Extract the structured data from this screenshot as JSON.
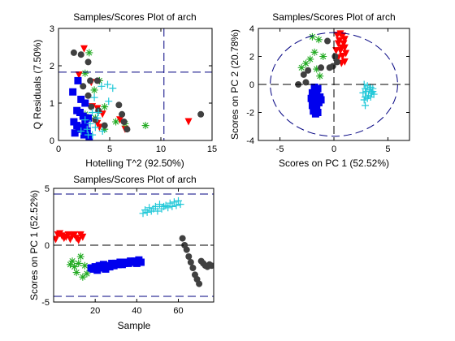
{
  "figure": {
    "background": "#ffffff",
    "panel_ids": [
      "scores-plot-q-vs-t2",
      "scores-plot-pc2-vs-pc1",
      "scores-plot-pc1-vs-sample"
    ]
  },
  "colors": {
    "red": "#ff0000",
    "green": "#22aa22",
    "dark": "#404040",
    "blue": "#0000ee",
    "cyan": "#20c8d8",
    "limit_line": "#000080",
    "zero_line": "#000000"
  },
  "chart_data": [
    {
      "id": "scores-plot-q-vs-t2",
      "type": "scatter",
      "title": "Samples/Scores Plot of arch",
      "xlabel": "Hotelling T^2 (92.50%)",
      "ylabel": "Q Residuals (7.50%)",
      "xlim": [
        0,
        15
      ],
      "ylim": [
        0,
        3
      ],
      "xticks": [
        0,
        5,
        10,
        15
      ],
      "yticks": [
        0,
        1,
        2,
        3
      ],
      "xtick_labels": [
        "0",
        "5",
        "10",
        "15"
      ],
      "ytick_labels": [
        "0",
        "1",
        "2",
        "3"
      ],
      "limit_lines": {
        "vertical_x": 10.3,
        "horizontal_y": 1.83
      },
      "grid": false,
      "series": [
        {
          "marker": "triangle-down",
          "color": "#ff0000",
          "points": [
            [
              2.5,
              2.45
            ],
            [
              2.0,
              1.75
            ],
            [
              3.2,
              1.55
            ],
            [
              3.3,
              0.9
            ],
            [
              3.8,
              0.85
            ],
            [
              4.3,
              0.7
            ],
            [
              6.0,
              0.55
            ],
            [
              3.8,
              0.45
            ],
            [
              6.5,
              0.3
            ],
            [
              12.7,
              0.5
            ],
            [
              4.0,
              0.35
            ]
          ]
        },
        {
          "marker": "star",
          "color": "#22aa22",
          "points": [
            [
              3.0,
              2.35
            ],
            [
              4.0,
              1.6
            ],
            [
              2.6,
              1.8
            ],
            [
              3.5,
              1.35
            ],
            [
              4.5,
              0.9
            ],
            [
              3.6,
              0.6
            ],
            [
              5.6,
              0.5
            ],
            [
              6.5,
              0.45
            ],
            [
              8.5,
              0.4
            ],
            [
              2.6,
              0.7
            ],
            [
              4.5,
              0.3
            ]
          ]
        },
        {
          "marker": "circle",
          "color": "#404040",
          "points": [
            [
              1.5,
              2.35
            ],
            [
              2.2,
              2.3
            ],
            [
              2.9,
              2.1
            ],
            [
              3.1,
              1.6
            ],
            [
              3.8,
              1.6
            ],
            [
              2.4,
              1.45
            ],
            [
              2.9,
              1.2
            ],
            [
              3.2,
              0.9
            ],
            [
              3.9,
              0.8
            ],
            [
              5.9,
              0.95
            ],
            [
              6.2,
              0.7
            ],
            [
              6.4,
              0.5
            ],
            [
              4.5,
              0.4
            ],
            [
              3.6,
              0.55
            ],
            [
              13.9,
              0.7
            ],
            [
              6.7,
              0.3
            ]
          ]
        },
        {
          "marker": "square",
          "color": "#0000ee",
          "points": [
            [
              1.9,
              1.6
            ],
            [
              1.4,
              1.3
            ],
            [
              2.2,
              1.1
            ],
            [
              2.6,
              1.0
            ],
            [
              1.8,
              0.8
            ],
            [
              2.1,
              0.75
            ],
            [
              2.4,
              0.65
            ],
            [
              2.9,
              0.6
            ],
            [
              1.5,
              0.5
            ],
            [
              2.0,
              0.35
            ],
            [
              2.3,
              0.3
            ],
            [
              2.8,
              0.25
            ],
            [
              1.6,
              0.2
            ],
            [
              2.5,
              0.15
            ],
            [
              3.0,
              0.1
            ],
            [
              1.8,
              0.4
            ],
            [
              2.6,
              0.45
            ]
          ]
        },
        {
          "marker": "plus",
          "color": "#20c8d8",
          "points": [
            [
              4.2,
              1.45
            ],
            [
              4.8,
              1.5
            ],
            [
              5.3,
              1.4
            ],
            [
              3.5,
              1.15
            ],
            [
              4.9,
              1.05
            ],
            [
              3.3,
              0.75
            ],
            [
              3.9,
              0.75
            ],
            [
              2.6,
              0.55
            ],
            [
              3.1,
              0.45
            ],
            [
              3.6,
              0.35
            ],
            [
              2.8,
              0.3
            ],
            [
              4.3,
              0.25
            ],
            [
              3.3,
              0.15
            ],
            [
              2.2,
              0.25
            ],
            [
              2.9,
              0.15
            ],
            [
              3.8,
              0.6
            ]
          ]
        }
      ]
    },
    {
      "id": "scores-plot-pc2-vs-pc1",
      "type": "scatter",
      "title": "Samples/Scores Plot of arch",
      "xlabel": "Scores on PC 1 (52.52%)",
      "ylabel": "Scores on PC 2 (20.78%)",
      "xlim": [
        -7,
        7
      ],
      "ylim": [
        -4,
        4
      ],
      "xticks": [
        -5,
        0,
        5
      ],
      "yticks": [
        -4,
        -2,
        0,
        2,
        4
      ],
      "xtick_labels": [
        "-5",
        "0",
        "5"
      ],
      "ytick_labels": [
        "-4",
        "-2",
        "0",
        "2",
        "4"
      ],
      "confidence_ellipse": {
        "center": [
          0,
          0
        ],
        "radius_x": 5.9,
        "radius_y": 3.7
      },
      "zero_lines": true,
      "grid": false,
      "series": [
        {
          "marker": "triangle-down",
          "color": "#ff0000",
          "points": [
            [
              0.3,
              3.5
            ],
            [
              0.6,
              3.6
            ],
            [
              0.8,
              3.45
            ],
            [
              1.0,
              3.2
            ],
            [
              0.5,
              3.1
            ],
            [
              0.4,
              2.9
            ],
            [
              0.9,
              2.9
            ],
            [
              0.7,
              2.6
            ],
            [
              1.0,
              2.6
            ],
            [
              0.2,
              2.4
            ],
            [
              0.6,
              2.4
            ],
            [
              1.1,
              2.2
            ],
            [
              0.8,
              2.0
            ],
            [
              0.4,
              1.9
            ],
            [
              1.0,
              1.6
            ],
            [
              0.7,
              1.5
            ]
          ]
        },
        {
          "marker": "star",
          "color": "#22aa22",
          "points": [
            [
              -2.0,
              3.4
            ],
            [
              -1.4,
              3.2
            ],
            [
              -1.8,
              2.3
            ],
            [
              -1.0,
              2.0
            ],
            [
              -2.2,
              1.8
            ],
            [
              -2.6,
              1.5
            ],
            [
              -3.0,
              1.2
            ],
            [
              -1.6,
              1.1
            ],
            [
              -1.3,
              0.6
            ]
          ]
        },
        {
          "marker": "circle",
          "color": "#404040",
          "points": [
            [
              -0.6,
              3.1
            ],
            [
              0.1,
              2.0
            ],
            [
              -0.1,
              1.3
            ],
            [
              -0.4,
              1.2
            ],
            [
              -1.2,
              1.2
            ],
            [
              -2.4,
              1.0
            ],
            [
              -2.8,
              0.7
            ],
            [
              -3.3,
              0.0
            ],
            [
              -2.6,
              0.15
            ],
            [
              0.3,
              1.6
            ]
          ]
        },
        {
          "marker": "square",
          "color": "#0000ee",
          "points": [
            [
              -1.8,
              -0.2
            ],
            [
              -1.5,
              -0.3
            ],
            [
              -2.0,
              -0.6
            ],
            [
              -1.6,
              -0.7
            ],
            [
              -1.3,
              -0.9
            ],
            [
              -2.1,
              -1.0
            ],
            [
              -1.7,
              -1.2
            ],
            [
              -1.4,
              -1.3
            ],
            [
              -2.0,
              -1.5
            ],
            [
              -1.6,
              -1.6
            ],
            [
              -1.9,
              -1.9
            ],
            [
              -1.5,
              -2.0
            ],
            [
              -1.7,
              -2.1
            ],
            [
              -1.2,
              -1.1
            ],
            [
              -1.8,
              -1.4
            ]
          ]
        },
        {
          "marker": "plus",
          "color": "#20c8d8",
          "points": [
            [
              2.8,
              0.0
            ],
            [
              3.1,
              -0.1
            ],
            [
              3.4,
              -0.2
            ],
            [
              2.9,
              -0.3
            ],
            [
              3.3,
              -0.4
            ],
            [
              3.6,
              -0.5
            ],
            [
              3.0,
              -0.5
            ],
            [
              3.5,
              -0.6
            ],
            [
              2.7,
              -0.6
            ],
            [
              3.2,
              -0.8
            ],
            [
              2.9,
              -0.9
            ],
            [
              3.4,
              -0.9
            ],
            [
              3.1,
              -1.0
            ],
            [
              2.8,
              -1.1
            ],
            [
              2.9,
              -1.5
            ],
            [
              3.6,
              -0.3
            ],
            [
              3.7,
              -0.7
            ]
          ]
        }
      ]
    },
    {
      "id": "scores-plot-pc1-vs-sample",
      "type": "scatter",
      "title": "Samples/Scores Plot of arch",
      "xlabel": "Sample",
      "ylabel": "Scores on PC 1 (52.52%)",
      "xlim": [
        0,
        77
      ],
      "ylim": [
        -5,
        5
      ],
      "xticks": [
        20,
        40,
        60
      ],
      "yticks": [
        -5,
        0,
        5
      ],
      "xtick_labels": [
        "20",
        "40",
        "60"
      ],
      "ytick_labels": [
        "-5",
        "0",
        "5"
      ],
      "limit_lines": {
        "upper_y": 4.5,
        "lower_y": -4.5
      },
      "zero_line": true,
      "grid": false,
      "series": [
        {
          "marker": "triangle-down",
          "color": "#ff0000",
          "points": [
            [
              1,
              0.5
            ],
            [
              2,
              0.9
            ],
            [
              3,
              1.0
            ],
            [
              4,
              0.8
            ],
            [
              5,
              0.6
            ],
            [
              6,
              0.7
            ],
            [
              7,
              0.9
            ],
            [
              8,
              0.5
            ],
            [
              9,
              0.8
            ],
            [
              10,
              0.9
            ],
            [
              11,
              0.6
            ],
            [
              12,
              0.4
            ],
            [
              13,
              0.9
            ],
            [
              14,
              0.7
            ]
          ]
        },
        {
          "marker": "star",
          "color": "#22aa22",
          "points": [
            [
              8,
              -1.7
            ],
            [
              9,
              -1.4
            ],
            [
              10,
              -1.9
            ],
            [
              11,
              -2.4
            ],
            [
              12,
              -1.6
            ],
            [
              13,
              -1.0
            ],
            [
              14,
              -2.8
            ],
            [
              15,
              -1.8
            ],
            [
              16,
              -2.5
            ]
          ]
        },
        {
          "marker": "square",
          "color": "#0000ee",
          "points": [
            [
              18,
              -2.0
            ],
            [
              19,
              -2.1
            ],
            [
              20,
              -1.9
            ],
            [
              21,
              -2.2
            ],
            [
              22,
              -1.8
            ],
            [
              23,
              -2.0
            ],
            [
              24,
              -1.7
            ],
            [
              25,
              -2.1
            ],
            [
              26,
              -1.8
            ],
            [
              27,
              -1.9
            ],
            [
              28,
              -1.6
            ],
            [
              29,
              -1.8
            ],
            [
              30,
              -1.6
            ],
            [
              31,
              -1.7
            ],
            [
              32,
              -1.5
            ],
            [
              33,
              -1.7
            ],
            [
              34,
              -1.6
            ],
            [
              35,
              -1.5
            ],
            [
              36,
              -1.6
            ],
            [
              37,
              -1.4
            ],
            [
              38,
              -1.5
            ],
            [
              39,
              -1.4
            ],
            [
              40,
              -1.6
            ],
            [
              41,
              -1.3
            ],
            [
              42,
              -1.5
            ]
          ]
        },
        {
          "marker": "plus",
          "color": "#20c8d8",
          "points": [
            [
              43,
              2.8
            ],
            [
              44,
              3.1
            ],
            [
              45,
              2.9
            ],
            [
              46,
              3.3
            ],
            [
              47,
              3.0
            ],
            [
              48,
              3.2
            ],
            [
              49,
              3.4
            ],
            [
              50,
              3.0
            ],
            [
              51,
              3.6
            ],
            [
              52,
              3.2
            ],
            [
              53,
              3.4
            ],
            [
              54,
              3.5
            ],
            [
              55,
              3.3
            ],
            [
              56,
              3.7
            ],
            [
              57,
              3.4
            ],
            [
              58,
              3.8
            ],
            [
              59,
              3.5
            ],
            [
              60,
              3.9
            ],
            [
              61,
              3.6
            ]
          ]
        },
        {
          "marker": "circle",
          "color": "#404040",
          "points": [
            [
              62,
              0.6
            ],
            [
              63,
              0.0
            ],
            [
              64,
              -0.4
            ],
            [
              65,
              -1.0
            ],
            [
              66,
              -1.5
            ],
            [
              67,
              -2.0
            ],
            [
              68,
              -2.6
            ],
            [
              69,
              -3.0
            ],
            [
              70,
              -3.4
            ],
            [
              71,
              -1.4
            ],
            [
              72,
              -1.6
            ],
            [
              73,
              -1.8
            ],
            [
              74,
              -1.9
            ],
            [
              75,
              -1.7
            ],
            [
              76,
              -1.8
            ]
          ]
        }
      ]
    }
  ]
}
